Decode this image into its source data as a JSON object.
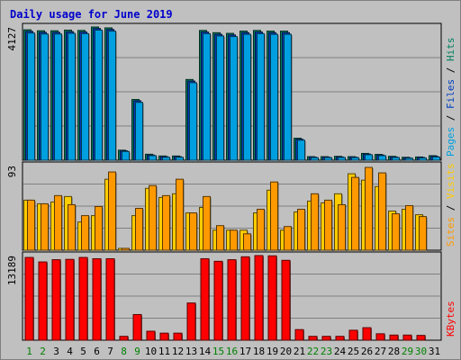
{
  "chart_data": {
    "type": "bar",
    "title": "Daily usage for June 2019",
    "categories": [
      "1",
      "2",
      "3",
      "4",
      "5",
      "6",
      "7",
      "8",
      "9",
      "10",
      "11",
      "12",
      "13",
      "14",
      "15",
      "16",
      "17",
      "18",
      "19",
      "20",
      "21",
      "22",
      "23",
      "24",
      "25",
      "26",
      "27",
      "28",
      "29",
      "30",
      "31"
    ],
    "weekend_days": [
      "1",
      "2",
      "8",
      "9",
      "15",
      "16",
      "22",
      "23",
      "29",
      "30"
    ],
    "colors": {
      "title": "#0000cc",
      "pages": "#00a0e0",
      "files": "#0040c0",
      "hits": "#008060",
      "sites": "#ff9900",
      "visits": "#ffcc00",
      "kbytes": "#ff0000",
      "weekday_label": "#000000",
      "weekend_label": "#008000"
    },
    "panels": [
      {
        "name": "hits-files-pages",
        "max_label": "4127",
        "ymax": 4127,
        "legend": [
          {
            "text": "Pages",
            "color": "#00a0e0"
          },
          {
            "text": " / ",
            "color": "#000000"
          },
          {
            "text": "Files",
            "color": "#0040c0"
          },
          {
            "text": " / ",
            "color": "#000000"
          },
          {
            "text": "Hits",
            "color": "#008060"
          }
        ],
        "series": [
          {
            "name": "Hits",
            "color": "#008060",
            "values": [
              4040,
              4010,
              4010,
              4030,
              4020,
              4127,
              4100,
              310,
              1880,
              185,
              130,
              130,
              2500,
              4020,
              3950,
              3930,
              4000,
              4020,
              4000,
              4000,
              680,
              110,
              110,
              120,
              110,
              210,
              180,
              120,
              90,
              100,
              140
            ]
          },
          {
            "name": "Files",
            "color": "#0040c0",
            "values": [
              3990,
              3960,
              3960,
              3980,
              3970,
              4080,
              4050,
              290,
              1840,
              160,
              110,
              110,
              2450,
              3970,
              3900,
              3880,
              3950,
              3970,
              3950,
              3950,
              650,
              95,
              95,
              100,
              95,
              190,
              160,
              100,
              75,
              85,
              120
            ]
          },
          {
            "name": "Pages",
            "color": "#00a0e0",
            "values": [
              3940,
              3910,
              3910,
              3930,
              3920,
              4030,
              4000,
              270,
              1790,
              140,
              90,
              90,
              2400,
              3920,
              3850,
              3830,
              3900,
              3920,
              3900,
              3900,
              620,
              80,
              80,
              85,
              80,
              170,
              140,
              85,
              60,
              70,
              100
            ]
          }
        ]
      },
      {
        "name": "visits-sites",
        "max_label": "93",
        "ymax": 93,
        "legend": [
          {
            "text": "Sites",
            "color": "#ff9900"
          },
          {
            "text": " / ",
            "color": "#000000"
          },
          {
            "text": "Visits",
            "color": "#ffcc00"
          }
        ],
        "series": [
          {
            "name": "Visits",
            "color": "#ffcc00",
            "values": [
              55,
              51,
              53,
              59,
              31,
              38,
              78,
              2,
              38,
              68,
              58,
              62,
              41,
              47,
              22,
              22,
              22,
              41,
              66,
              22,
              42,
              54,
              52,
              62,
              84,
              77,
              70,
              43,
              45,
              39,
              0
            ]
          },
          {
            "name": "Sites",
            "color": "#ff9900",
            "values": [
              55,
              51,
              60,
              50,
              38,
              48,
              86,
              2,
              46,
              71,
              60,
              78,
              41,
              59,
              27,
              22,
              18,
              45,
              75,
              26,
              45,
              62,
              55,
              50,
              80,
              91,
              85,
              40,
              49,
              37,
              0
            ]
          }
        ]
      },
      {
        "name": "kbytes",
        "max_label": "13189",
        "ymax": 13189,
        "legend": [
          {
            "text": "KBytes",
            "color": "#ff0000"
          }
        ],
        "series": [
          {
            "name": "KBytes",
            "color": "#ff0000",
            "values": [
              12900,
              12200,
              12550,
              12600,
              12900,
              12700,
              12700,
              600,
              4000,
              1400,
              1100,
              1100,
              5800,
              12700,
              12300,
              12550,
              13000,
              13189,
              13150,
              12450,
              1650,
              600,
              600,
              600,
              1550,
              1950,
              1000,
              800,
              800,
              750,
              0
            ]
          }
        ]
      }
    ]
  }
}
